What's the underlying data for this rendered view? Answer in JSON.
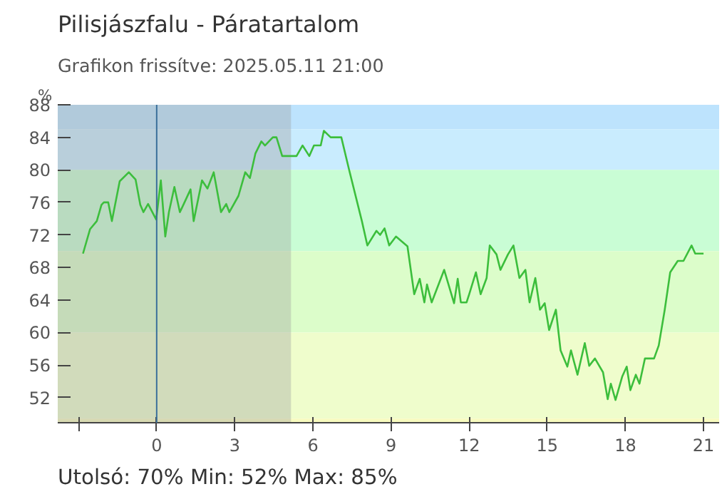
{
  "chart_data": {
    "type": "line",
    "title": "Pilisjászfalu - Páratartalom",
    "subtitle": "Grafikon frissítve: 2025.05.11 21:00",
    "ylabel": "%",
    "annotations": [
      "Utolsó: 70%  Min: 52%  Max: 85%"
    ],
    "x": [
      -2.83,
      -2.56,
      -2.3,
      -2.12,
      -2.03,
      -1.86,
      -1.72,
      -1.42,
      -1.07,
      -0.81,
      -0.63,
      -0.51,
      -0.33,
      -0.02,
      0.16,
      0.33,
      0.47,
      0.68,
      0.89,
      1.04,
      1.3,
      1.42,
      1.74,
      1.95,
      2.19,
      2.47,
      2.67,
      2.79,
      3.14,
      3.4,
      3.58,
      3.79,
      4.02,
      4.16,
      4.46,
      4.6,
      4.82,
      5.37,
      5.6,
      5.86,
      6.04,
      6.3,
      6.42,
      6.68,
      7.09,
      7.39,
      7.88,
      8.09,
      8.44,
      8.58,
      8.75,
      8.93,
      9.19,
      9.63,
      9.89,
      10.1,
      10.28,
      10.38,
      10.56,
      11.04,
      11.42,
      11.56,
      11.68,
      11.9,
      12.0,
      12.26,
      12.44,
      12.67,
      12.79,
      13.05,
      13.2,
      13.49,
      13.7,
      13.93,
      14.16,
      14.32,
      14.54,
      14.72,
      14.9,
      15.07,
      15.33,
      15.51,
      15.77,
      15.91,
      16.16,
      16.44,
      16.61,
      16.83,
      17.14,
      17.32,
      17.44,
      17.62,
      17.88,
      18.05,
      18.19,
      18.4,
      18.54,
      18.75,
      19.1,
      19.28,
      19.51,
      19.72,
      20.01,
      20.23,
      20.54,
      20.68,
      21.0
    ],
    "series": [
      {
        "color": "#3cbe3c",
        "values": [
          69.7,
          72.7,
          73.7,
          75.7,
          76,
          76,
          73.7,
          78.6,
          79.7,
          78.8,
          75.7,
          74.8,
          75.8,
          73.9,
          78.7,
          71.8,
          74.8,
          77.9,
          74.8,
          75.8,
          77.6,
          73.7,
          78.7,
          77.7,
          79.7,
          74.8,
          75.8,
          74.8,
          76.8,
          79.7,
          79,
          82,
          83.5,
          83,
          84,
          84,
          81.7,
          81.7,
          83,
          81.7,
          83,
          83,
          84.8,
          84,
          84,
          80,
          73.7,
          70.7,
          72.5,
          72,
          72.8,
          70.7,
          71.8,
          70.6,
          64.7,
          66.6,
          63.7,
          65.9,
          63.7,
          67.7,
          63.6,
          66.6,
          63.7,
          63.7,
          64.7,
          67.4,
          64.7,
          66.7,
          70.7,
          69.6,
          67.7,
          69.6,
          70.7,
          66.7,
          67.7,
          63.7,
          66.7,
          62.8,
          63.6,
          60.3,
          62.8,
          57.8,
          55.8,
          57.8,
          54.8,
          58.7,
          55.9,
          56.8,
          55.1,
          51.8,
          53.7,
          51.7,
          54.6,
          55.8,
          52.9,
          54.8,
          53.7,
          56.8,
          56.8,
          58.4,
          62.8,
          67.4,
          68.8,
          68.8,
          70.7,
          69.7,
          69.7
        ]
      }
    ],
    "xlim": [
      -3.8,
      21.6
    ],
    "ylim": [
      48.9,
      88
    ],
    "xticks": [
      {
        "value": -3,
        "label": null
      },
      0,
      3,
      6,
      9,
      12,
      15,
      18,
      21
    ],
    "yticks": [
      52,
      56,
      60,
      64,
      68,
      72,
      76,
      80,
      84,
      88
    ],
    "grid": false,
    "line_style": "solid",
    "marker": "none",
    "ref_lines": [
      {
        "axis": "x",
        "value": 0,
        "color": "#3a6f9a"
      }
    ],
    "bands": [
      {
        "axis": "y",
        "from": 85,
        "to": 88,
        "color": "#bde3fd"
      },
      {
        "axis": "y",
        "from": 80,
        "to": 85,
        "color": "#c9ecfe"
      },
      {
        "axis": "y",
        "from": 70,
        "to": 80,
        "color": "#c9fdd5"
      },
      {
        "axis": "y",
        "from": 60,
        "to": 70,
        "color": "#dcfdca"
      },
      {
        "axis": "y",
        "from": 49.4,
        "to": 60,
        "color": "#effdcc"
      },
      {
        "axis": "y",
        "from": 48.9,
        "to": 49.4,
        "color": "#f8fbbf"
      },
      {
        "axis": "x",
        "from": -3.8,
        "to": 5.16,
        "color": "#9a9a9a"
      }
    ]
  }
}
